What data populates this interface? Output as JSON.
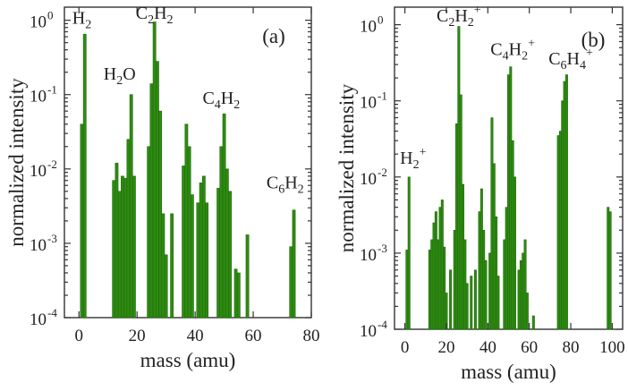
{
  "chart_data": [
    {
      "type": "bar",
      "panel_tag": "(a)",
      "xlabel": "mass (amu)",
      "ylabel": "normalized intensity",
      "xlim": [
        -5,
        80
      ],
      "ylim": [
        0.0001,
        1.5
      ],
      "yscale": "log",
      "xticks": [
        0,
        20,
        40,
        60,
        80
      ],
      "yticks": [
        0.0001,
        0.001,
        0.01,
        0.1,
        1
      ],
      "ytick_labels": [
        {
          "base": "10",
          "exp": "-4"
        },
        {
          "base": "10",
          "exp": "-3"
        },
        {
          "base": "10",
          "exp": "-2"
        },
        {
          "base": "10",
          "exp": "-1"
        },
        {
          "base": "10",
          "exp": "0"
        }
      ],
      "bar_color": "#2e8b12",
      "annotations": [
        {
          "parts": [
            {
              "t": "H"
            },
            {
              "t": "2",
              "s": "sub"
            }
          ],
          "x": 1,
          "y": 0.9
        },
        {
          "parts": [
            {
              "t": "H"
            },
            {
              "t": "2",
              "s": "sub"
            },
            {
              "t": "O"
            }
          ],
          "x": 14,
          "y": 0.16
        },
        {
          "parts": [
            {
              "t": "C"
            },
            {
              "t": "2",
              "s": "sub"
            },
            {
              "t": "H"
            },
            {
              "t": "2",
              "s": "sub"
            }
          ],
          "x": 26,
          "y": 1.05
        },
        {
          "parts": [
            {
              "t": "C"
            },
            {
              "t": "4",
              "s": "sub"
            },
            {
              "t": "H"
            },
            {
              "t": "2",
              "s": "sub"
            }
          ],
          "x": 49,
          "y": 0.075
        },
        {
          "parts": [
            {
              "t": "C"
            },
            {
              "t": "6",
              "s": "sub"
            },
            {
              "t": "H"
            },
            {
              "t": "2",
              "s": "sub"
            }
          ],
          "x": 71,
          "y": 0.0055
        }
      ],
      "bars": [
        {
          "x": 1,
          "y": 0.04
        },
        {
          "x": 2,
          "y": 0.65
        },
        {
          "x": 12,
          "y": 0.007
        },
        {
          "x": 13,
          "y": 0.012
        },
        {
          "x": 14,
          "y": 0.005
        },
        {
          "x": 15,
          "y": 0.008
        },
        {
          "x": 16,
          "y": 0.0075
        },
        {
          "x": 17,
          "y": 0.025
        },
        {
          "x": 18,
          "y": 0.1
        },
        {
          "x": 19,
          "y": 0.008
        },
        {
          "x": 24,
          "y": 0.02
        },
        {
          "x": 25,
          "y": 0.14
        },
        {
          "x": 26,
          "y": 0.95
        },
        {
          "x": 27,
          "y": 0.28
        },
        {
          "x": 28,
          "y": 0.06
        },
        {
          "x": 29,
          "y": 0.0025
        },
        {
          "x": 30,
          "y": 0.0007
        },
        {
          "x": 32,
          "y": 0.0025
        },
        {
          "x": 36,
          "y": 0.011
        },
        {
          "x": 37,
          "y": 0.04
        },
        {
          "x": 38,
          "y": 0.02
        },
        {
          "x": 39,
          "y": 0.0045
        },
        {
          "x": 41,
          "y": 0.0035
        },
        {
          "x": 42,
          "y": 0.0065
        },
        {
          "x": 43,
          "y": 0.008
        },
        {
          "x": 44,
          "y": 0.0035
        },
        {
          "x": 48,
          "y": 0.0055
        },
        {
          "x": 49,
          "y": 0.02
        },
        {
          "x": 50,
          "y": 0.055
        },
        {
          "x": 51,
          "y": 0.01
        },
        {
          "x": 52,
          "y": 0.005
        },
        {
          "x": 54,
          "y": 0.00045
        },
        {
          "x": 55,
          "y": 0.0004
        },
        {
          "x": 58,
          "y": 0.0013
        },
        {
          "x": 73,
          "y": 0.0009
        },
        {
          "x": 74,
          "y": 0.0028
        }
      ]
    },
    {
      "type": "bar",
      "panel_tag": "(b)",
      "xlabel": "mass (amu)",
      "ylabel": "normalized intensity",
      "xlim": [
        -5,
        105
      ],
      "ylim": [
        0.0001,
        1.7
      ],
      "yscale": "log",
      "xticks": [
        0,
        20,
        40,
        60,
        80,
        100
      ],
      "yticks": [
        0.0001,
        0.001,
        0.01,
        0.1,
        1
      ],
      "ytick_labels": [
        {
          "base": "10",
          "exp": "-4"
        },
        {
          "base": "10",
          "exp": "-3"
        },
        {
          "base": "10",
          "exp": "-2"
        },
        {
          "base": "10",
          "exp": "-1"
        },
        {
          "base": "10",
          "exp": "0"
        }
      ],
      "bar_color": "#2e8b12",
      "annotations": [
        {
          "parts": [
            {
              "t": "C"
            },
            {
              "t": "2",
              "s": "sub"
            },
            {
              "t": "H"
            },
            {
              "t": "2",
              "s": "sub"
            },
            {
              "t": "+",
              "s": "sup"
            }
          ],
          "x": 26,
          "y": 1.1
        },
        {
          "parts": [
            {
              "t": "H"
            },
            {
              "t": "2",
              "s": "sub"
            },
            {
              "t": "+",
              "s": "sup"
            }
          ],
          "x": 4,
          "y": 0.015
        },
        {
          "parts": [
            {
              "t": "C"
            },
            {
              "t": "4",
              "s": "sub"
            },
            {
              "t": "H"
            },
            {
              "t": "2",
              "s": "sub"
            },
            {
              "t": "+",
              "s": "sup"
            }
          ],
          "x": 52,
          "y": 0.4
        },
        {
          "parts": [
            {
              "t": "C"
            },
            {
              "t": "6",
              "s": "sub"
            },
            {
              "t": "H"
            },
            {
              "t": "4",
              "s": "sub"
            },
            {
              "t": "+",
              "s": "sup"
            }
          ],
          "x": 80,
          "y": 0.3
        }
      ],
      "bars": [
        {
          "x": 1,
          "y": 0.0011
        },
        {
          "x": 2,
          "y": 0.01
        },
        {
          "x": 12,
          "y": 0.0011
        },
        {
          "x": 13,
          "y": 0.0015
        },
        {
          "x": 14,
          "y": 0.0025
        },
        {
          "x": 15,
          "y": 0.0035
        },
        {
          "x": 16,
          "y": 0.0015
        },
        {
          "x": 17,
          "y": 0.004
        },
        {
          "x": 18,
          "y": 0.005
        },
        {
          "x": 19,
          "y": 0.0012
        },
        {
          "x": 20,
          "y": 0.0003
        },
        {
          "x": 22,
          "y": 0.0006
        },
        {
          "x": 24,
          "y": 0.002
        },
        {
          "x": 25,
          "y": 0.05
        },
        {
          "x": 26,
          "y": 0.95
        },
        {
          "x": 27,
          "y": 0.12
        },
        {
          "x": 28,
          "y": 0.008
        },
        {
          "x": 29,
          "y": 0.0015
        },
        {
          "x": 30,
          "y": 0.0004
        },
        {
          "x": 32,
          "y": 0.0005
        },
        {
          "x": 34,
          "y": 0.0006
        },
        {
          "x": 36,
          "y": 0.0035
        },
        {
          "x": 37,
          "y": 0.007
        },
        {
          "x": 38,
          "y": 0.002
        },
        {
          "x": 39,
          "y": 0.0008
        },
        {
          "x": 41,
          "y": 0.001
        },
        {
          "x": 42,
          "y": 0.06
        },
        {
          "x": 43,
          "y": 0.015
        },
        {
          "x": 44,
          "y": 0.003
        },
        {
          "x": 45,
          "y": 0.0005
        },
        {
          "x": 48,
          "y": 0.0015
        },
        {
          "x": 49,
          "y": 0.004
        },
        {
          "x": 50,
          "y": 0.22
        },
        {
          "x": 51,
          "y": 0.28
        },
        {
          "x": 52,
          "y": 0.03
        },
        {
          "x": 53,
          "y": 0.01
        },
        {
          "x": 55,
          "y": 0.0006
        },
        {
          "x": 56,
          "y": 0.0008
        },
        {
          "x": 57,
          "y": 0.001
        },
        {
          "x": 58,
          "y": 0.0015
        },
        {
          "x": 59,
          "y": 0.0003
        },
        {
          "x": 62,
          "y": 0.00015
        },
        {
          "x": 74,
          "y": 0.035
        },
        {
          "x": 75,
          "y": 0.04
        },
        {
          "x": 76,
          "y": 0.1
        },
        {
          "x": 77,
          "y": 0.18
        },
        {
          "x": 78,
          "y": 0.22
        },
        {
          "x": 98,
          "y": 0.004
        },
        {
          "x": 99,
          "y": 0.0035
        }
      ]
    }
  ]
}
